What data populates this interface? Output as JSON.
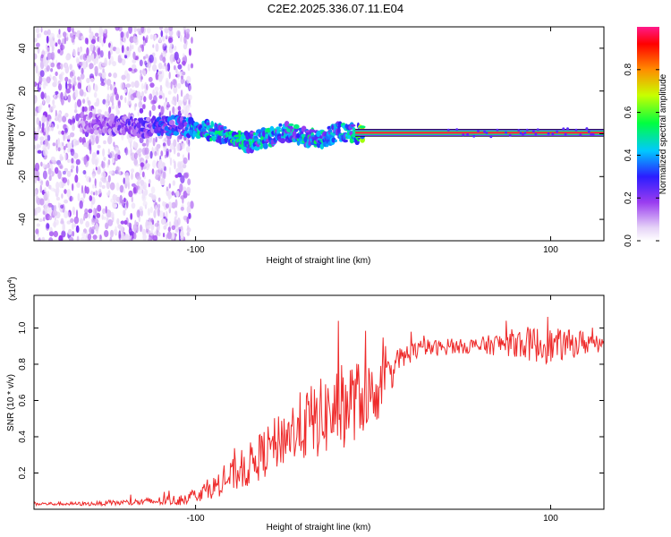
{
  "title": "C2E2.2025.336.07.11.E04",
  "colors": {
    "snr_line": "#ee2a2a",
    "spec_ridge": "#ff2a3a"
  },
  "chart_data": [
    {
      "type": "heatmap",
      "name": "spectrogram",
      "xlabel": "Height of straight line (km)",
      "ylabel": "Frequency (Hz)",
      "xlim": [
        -191,
        130
      ],
      "ylim": [
        -50,
        50
      ],
      "xticks": [
        -100,
        100
      ],
      "xtick_labels": [
        "-100",
        "100"
      ],
      "yticks": [
        40,
        20,
        0,
        -20,
        -40
      ],
      "ytick_labels": [
        "40",
        "20",
        "0",
        "-20",
        "-40"
      ],
      "colorbar": {
        "label": "Normalized spectral amplitude",
        "range": [
          0,
          1
        ],
        "ticks": [
          0.0,
          0.2,
          0.4,
          0.6,
          0.8
        ],
        "tick_labels": [
          "0.0",
          "0.2",
          "0.4",
          "0.6",
          "0.8"
        ]
      },
      "ridge": {
        "description_points_x_km": [
          -160,
          -130,
          -110,
          -95,
          -80,
          -70,
          -60,
          -50,
          -40,
          -30,
          -20,
          -10,
          0,
          20,
          60,
          100,
          130
        ],
        "frequency_hz": [
          5,
          3,
          4,
          2,
          -1,
          -4,
          -2,
          1,
          -1,
          -3,
          1,
          0,
          0.5,
          0.5,
          0.5,
          0.5,
          0.5
        ],
        "amplitude": [
          0.15,
          0.25,
          0.35,
          0.45,
          0.5,
          0.45,
          0.45,
          0.4,
          0.45,
          0.45,
          0.4,
          0.5,
          0.9,
          0.95,
          0.95,
          0.95,
          0.95
        ]
      },
      "noise_floor_extent_km": [
        -191,
        -110
      ]
    },
    {
      "type": "line",
      "name": "snr",
      "xlabel": "Height of straight line (km)",
      "ylabel": "SNR (10 * v/v)",
      "y_multiplier_label": "(x10",
      "y_multiplier_exp": "4",
      "y_multiplier_close": ")",
      "xlim": [
        -191,
        130
      ],
      "ylim": [
        0,
        1.18
      ],
      "xticks": [
        -100,
        100
      ],
      "xtick_labels": [
        "-100",
        "100"
      ],
      "yticks": [
        0.2,
        0.4,
        0.6,
        0.8,
        1.0
      ],
      "ytick_labels": [
        "0.2",
        "0.4",
        "0.6",
        "0.8",
        "1.0"
      ],
      "series": [
        {
          "name": "SNR",
          "x": [
            -191,
            -160,
            -130,
            -110,
            -100,
            -90,
            -80,
            -70,
            -60,
            -50,
            -40,
            -30,
            -20,
            -15,
            -10,
            -5,
            0,
            5,
            10,
            15,
            20,
            25,
            30,
            40,
            50,
            60,
            70,
            80,
            90,
            100,
            110,
            120,
            130
          ],
          "y": [
            0.03,
            0.03,
            0.04,
            0.05,
            0.08,
            0.12,
            0.18,
            0.24,
            0.32,
            0.4,
            0.46,
            0.5,
            0.55,
            0.58,
            0.6,
            0.62,
            0.63,
            0.66,
            0.75,
            0.82,
            0.86,
            0.88,
            0.89,
            0.89,
            0.9,
            0.9,
            0.91,
            0.92,
            0.91,
            0.9,
            0.91,
            0.92,
            0.93
          ],
          "noise_amplitude": [
            0.01,
            0.01,
            0.02,
            0.03,
            0.04,
            0.06,
            0.09,
            0.12,
            0.14,
            0.16,
            0.2,
            0.22,
            0.24,
            0.24,
            0.22,
            0.2,
            0.18,
            0.14,
            0.1,
            0.08,
            0.06,
            0.05,
            0.05,
            0.04,
            0.04,
            0.05,
            0.06,
            0.08,
            0.1,
            0.1,
            0.08,
            0.07,
            0.06
          ]
        }
      ]
    }
  ]
}
